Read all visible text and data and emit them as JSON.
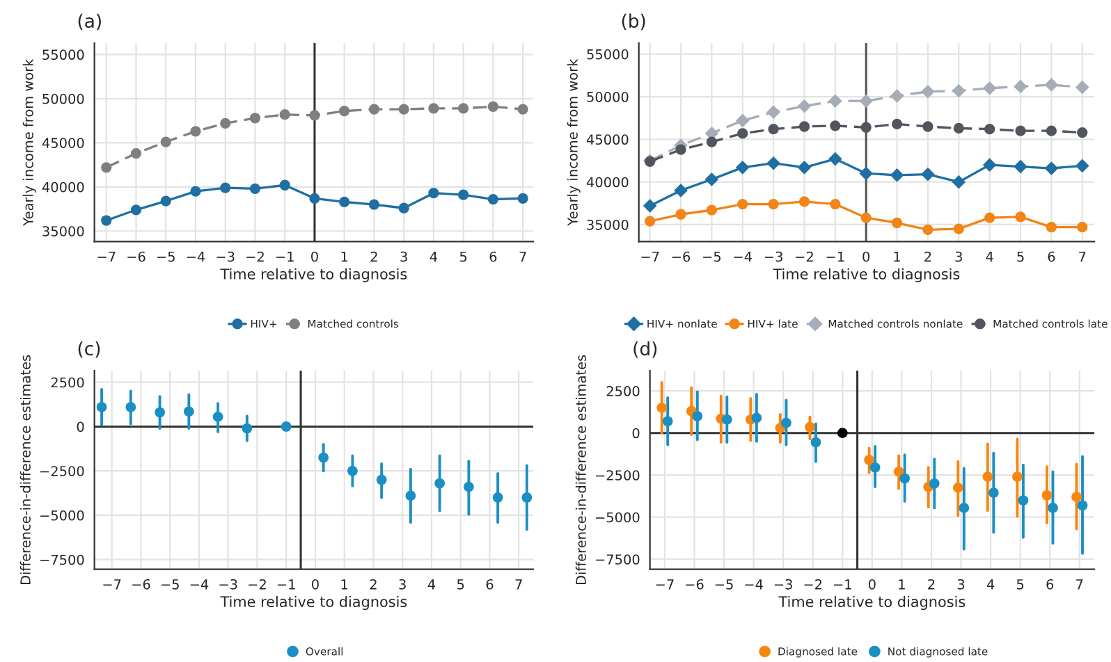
{
  "chart_data": [
    {
      "type": "line",
      "title": "(a)",
      "xlabel": "Time relative to diagnosis",
      "ylabel": "Yearly income from work",
      "x": [
        -7,
        -6,
        -5,
        -4,
        -3,
        -2,
        -1,
        0,
        1,
        2,
        3,
        4,
        5,
        6,
        7
      ],
      "xlim": [
        -7.4,
        7.35
      ],
      "ylim": [
        33800,
        56300
      ],
      "xticks": [
        {
          "value": -7,
          "label": "−7"
        },
        {
          "value": -6,
          "label": "−6"
        },
        {
          "value": -5,
          "label": "−5"
        },
        {
          "value": -4,
          "label": "−4"
        },
        {
          "value": -3,
          "label": "−3"
        },
        {
          "value": -2,
          "label": "−2"
        },
        {
          "value": -1,
          "label": "−1"
        },
        0,
        1,
        2,
        3,
        4,
        5,
        6,
        7
      ],
      "yticks": [
        35000,
        40000,
        45000,
        50000,
        55000
      ],
      "grid": true,
      "legend": "bottom",
      "ref_lines": [
        {
          "axis": "x",
          "value": 0,
          "color": "#333333"
        }
      ],
      "series": [
        {
          "name": "HIV+",
          "color": "#1f6fa3",
          "marker": "circle",
          "line_style": "solid",
          "values": [
            36200,
            37400,
            38400,
            39500,
            39900,
            39800,
            40200,
            38700,
            38300,
            38000,
            37600,
            39300,
            39100,
            38600,
            38700
          ]
        },
        {
          "name": "Matched controls",
          "color": "#7f7f7f",
          "marker": "circle",
          "line_style": "dashed",
          "values": [
            42200,
            43800,
            45100,
            46300,
            47200,
            47800,
            48200,
            48100,
            48600,
            48800,
            48800,
            48900,
            48900,
            49100,
            48800
          ]
        }
      ]
    },
    {
      "type": "line",
      "title": "(b)",
      "xlabel": "Time relative to diagnosis",
      "ylabel": "Yearly income from work",
      "x": [
        -7,
        -6,
        -5,
        -4,
        -3,
        -2,
        -1,
        0,
        1,
        2,
        3,
        4,
        5,
        6,
        7
      ],
      "xlim": [
        -7.36,
        7.39
      ],
      "ylim": [
        33000,
        56300
      ],
      "xticks": [
        {
          "value": -7,
          "label": "−7"
        },
        {
          "value": -6,
          "label": "−6"
        },
        {
          "value": -5,
          "label": "−5"
        },
        {
          "value": -4,
          "label": "−4"
        },
        {
          "value": -3,
          "label": "−3"
        },
        {
          "value": -2,
          "label": "−2"
        },
        {
          "value": -1,
          "label": "−1"
        },
        0,
        1,
        2,
        3,
        4,
        5,
        6,
        7
      ],
      "yticks": [
        35000,
        40000,
        45000,
        50000,
        55000
      ],
      "grid": true,
      "legend": "bottom",
      "ref_lines": [
        {
          "axis": "x",
          "value": 0,
          "color": "#555555"
        }
      ],
      "series": [
        {
          "name": "HIV+ nonlate",
          "color": "#1f6fa3",
          "marker": "diamond",
          "line_style": "solid",
          "values": [
            37200,
            39000,
            40300,
            41700,
            42200,
            41700,
            42700,
            41000,
            40800,
            40900,
            40000,
            42000,
            41800,
            41600,
            41900
          ]
        },
        {
          "name": "HIV+ late",
          "color": "#f28418",
          "marker": "circle",
          "line_style": "solid",
          "values": [
            35400,
            36200,
            36700,
            37400,
            37400,
            37700,
            37400,
            35800,
            35200,
            34400,
            34500,
            35800,
            35900,
            34700,
            34700
          ]
        },
        {
          "name": "Matched controls nonlate",
          "color": "#a7adb8",
          "marker": "diamond",
          "line_style": "dashed",
          "values": [
            42500,
            44300,
            45700,
            47200,
            48200,
            48900,
            49500,
            49500,
            50100,
            50600,
            50700,
            51000,
            51200,
            51400,
            51100
          ]
        },
        {
          "name": "Matched controls late",
          "color": "#50555e",
          "marker": "circle",
          "line_style": "dashed",
          "values": [
            42400,
            43800,
            44700,
            45700,
            46200,
            46500,
            46600,
            46400,
            46800,
            46500,
            46300,
            46200,
            46000,
            46000,
            45800
          ]
        }
      ]
    },
    {
      "type": "scatter",
      "title": "(c)",
      "xlabel": "Time relative to diagnosis",
      "ylabel": "Difference-in-difference estimates",
      "xlim": [
        -7.6,
        7.5
      ],
      "ylim": [
        -8050,
        3150
      ],
      "xticks": [
        {
          "value": -7,
          "label": "−7"
        },
        {
          "value": -6,
          "label": "−6"
        },
        {
          "value": -5,
          "label": "−5"
        },
        {
          "value": -4,
          "label": "−4"
        },
        {
          "value": -3,
          "label": "−3"
        },
        {
          "value": -2,
          "label": "−2"
        },
        {
          "value": -1,
          "label": "−1"
        },
        0,
        1,
        2,
        3,
        4,
        5,
        6,
        7
      ],
      "yticks": [
        {
          "value": -7500,
          "label": "−7500"
        },
        {
          "value": -5000,
          "label": "−5000"
        },
        {
          "value": -2500,
          "label": "−2500"
        },
        0,
        2500
      ],
      "grid": true,
      "legend": "bottom",
      "marker": "circle",
      "ref_lines": [
        {
          "axis": "x",
          "value": -0.5,
          "color": "#333333"
        },
        {
          "axis": "y",
          "value": 0,
          "color": "#333333"
        }
      ],
      "series": [
        {
          "name": "Overall",
          "color": "#1a8fc4",
          "x": [
            -7.35,
            -6.35,
            -5.35,
            -4.35,
            -3.35,
            -2.35,
            -1,
            0.28,
            1.28,
            2.28,
            3.28,
            4.28,
            5.28,
            6.28,
            7.28
          ],
          "values": [
            1100,
            1100,
            800,
            850,
            550,
            -100,
            0,
            -1750,
            -2500,
            -3000,
            -3900,
            -3200,
            -3400,
            -4000,
            -4000
          ],
          "errors": [
            [
              100,
              2100
            ],
            [
              150,
              2000
            ],
            [
              -100,
              1700
            ],
            [
              -100,
              1800
            ],
            [
              -300,
              1300
            ],
            [
              -800,
              600
            ],
            null,
            [
              -2500,
              -1000
            ],
            [
              -3350,
              -1650
            ],
            [
              -4000,
              -2100
            ],
            [
              -5400,
              -2400
            ],
            [
              -4750,
              -1650
            ],
            [
              -4950,
              -1950
            ],
            [
              -5400,
              -2650
            ],
            [
              -5800,
              -2200
            ]
          ]
        }
      ]
    },
    {
      "type": "scatter",
      "title": "(d)",
      "xlabel": "Time relative to diagnosis",
      "ylabel": "Difference-in-difference estimates",
      "xlim": [
        -7.5,
        7.5
      ],
      "ylim": [
        -8100,
        3700
      ],
      "xticks": [
        {
          "value": -7,
          "label": "−7"
        },
        {
          "value": -6,
          "label": "−6"
        },
        {
          "value": -5,
          "label": "−5"
        },
        {
          "value": -4,
          "label": "−4"
        },
        {
          "value": -3,
          "label": "−3"
        },
        {
          "value": -2,
          "label": "−2"
        },
        {
          "value": -1,
          "label": "−1"
        },
        0,
        1,
        2,
        3,
        4,
        5,
        6,
        7
      ],
      "yticks": [
        {
          "value": -7500,
          "label": "−7500"
        },
        {
          "value": -5000,
          "label": "−5000"
        },
        {
          "value": -2500,
          "label": "−2500"
        },
        0,
        2500
      ],
      "grid": true,
      "legend": "bottom",
      "marker": "circle",
      "ref_lines": [
        {
          "axis": "x",
          "value": -0.5,
          "color": "#333333"
        },
        {
          "axis": "y",
          "value": 0,
          "color": "#333333"
        }
      ],
      "series": [
        {
          "name": "Diagnosed late",
          "color": "#f7860f",
          "x": [
            -7.1,
            -6.1,
            -5.1,
            -4.1,
            -3.1,
            -2.1,
            -0.1,
            0.9,
            1.9,
            2.9,
            3.9,
            4.9,
            5.9,
            6.9
          ],
          "values": [
            1500,
            1300,
            850,
            800,
            300,
            350,
            -1600,
            -2300,
            -3200,
            -3250,
            -2600,
            -2600,
            -3700,
            -3800
          ],
          "errors": [
            [
              0,
              3000
            ],
            [
              -100,
              2700
            ],
            [
              -550,
              2200
            ],
            [
              -450,
              2050
            ],
            [
              -550,
              1100
            ],
            [
              -350,
              950
            ],
            [
              -2350,
              -900
            ],
            [
              -3300,
              -1350
            ],
            [
              -4400,
              -2050
            ],
            [
              -4900,
              -1700
            ],
            [
              -4600,
              -650
            ],
            [
              -4950,
              -350
            ],
            [
              -5350,
              -2000
            ],
            [
              -5700,
              -1850
            ]
          ]
        },
        {
          "name": "Not diagnosed late",
          "color": "#1a8fc4",
          "x": [
            -6.9,
            -5.9,
            -4.9,
            -3.9,
            -2.9,
            -1.9,
            0.1,
            1.1,
            2.1,
            3.1,
            4.1,
            5.1,
            6.1,
            7.1
          ],
          "values": [
            700,
            1000,
            800,
            900,
            600,
            -550,
            -2050,
            -2700,
            -3000,
            -4450,
            -3550,
            -4000,
            -4450,
            -4300
          ],
          "errors": [
            [
              -700,
              2100
            ],
            [
              -400,
              2450
            ],
            [
              -550,
              2150
            ],
            [
              -500,
              2300
            ],
            [
              -700,
              1950
            ],
            [
              -1700,
              550
            ],
            [
              -3200,
              -800
            ],
            [
              -4050,
              -1300
            ],
            [
              -4450,
              -1550
            ],
            [
              -6900,
              -2100
            ],
            [
              -5900,
              -1200
            ],
            [
              -6200,
              -1900
            ],
            [
              -6550,
              -2300
            ],
            [
              -7150,
              -1400
            ]
          ]
        },
        {
          "color": "#000000",
          "x": [
            -1
          ],
          "values": [
            0
          ]
        }
      ]
    }
  ]
}
